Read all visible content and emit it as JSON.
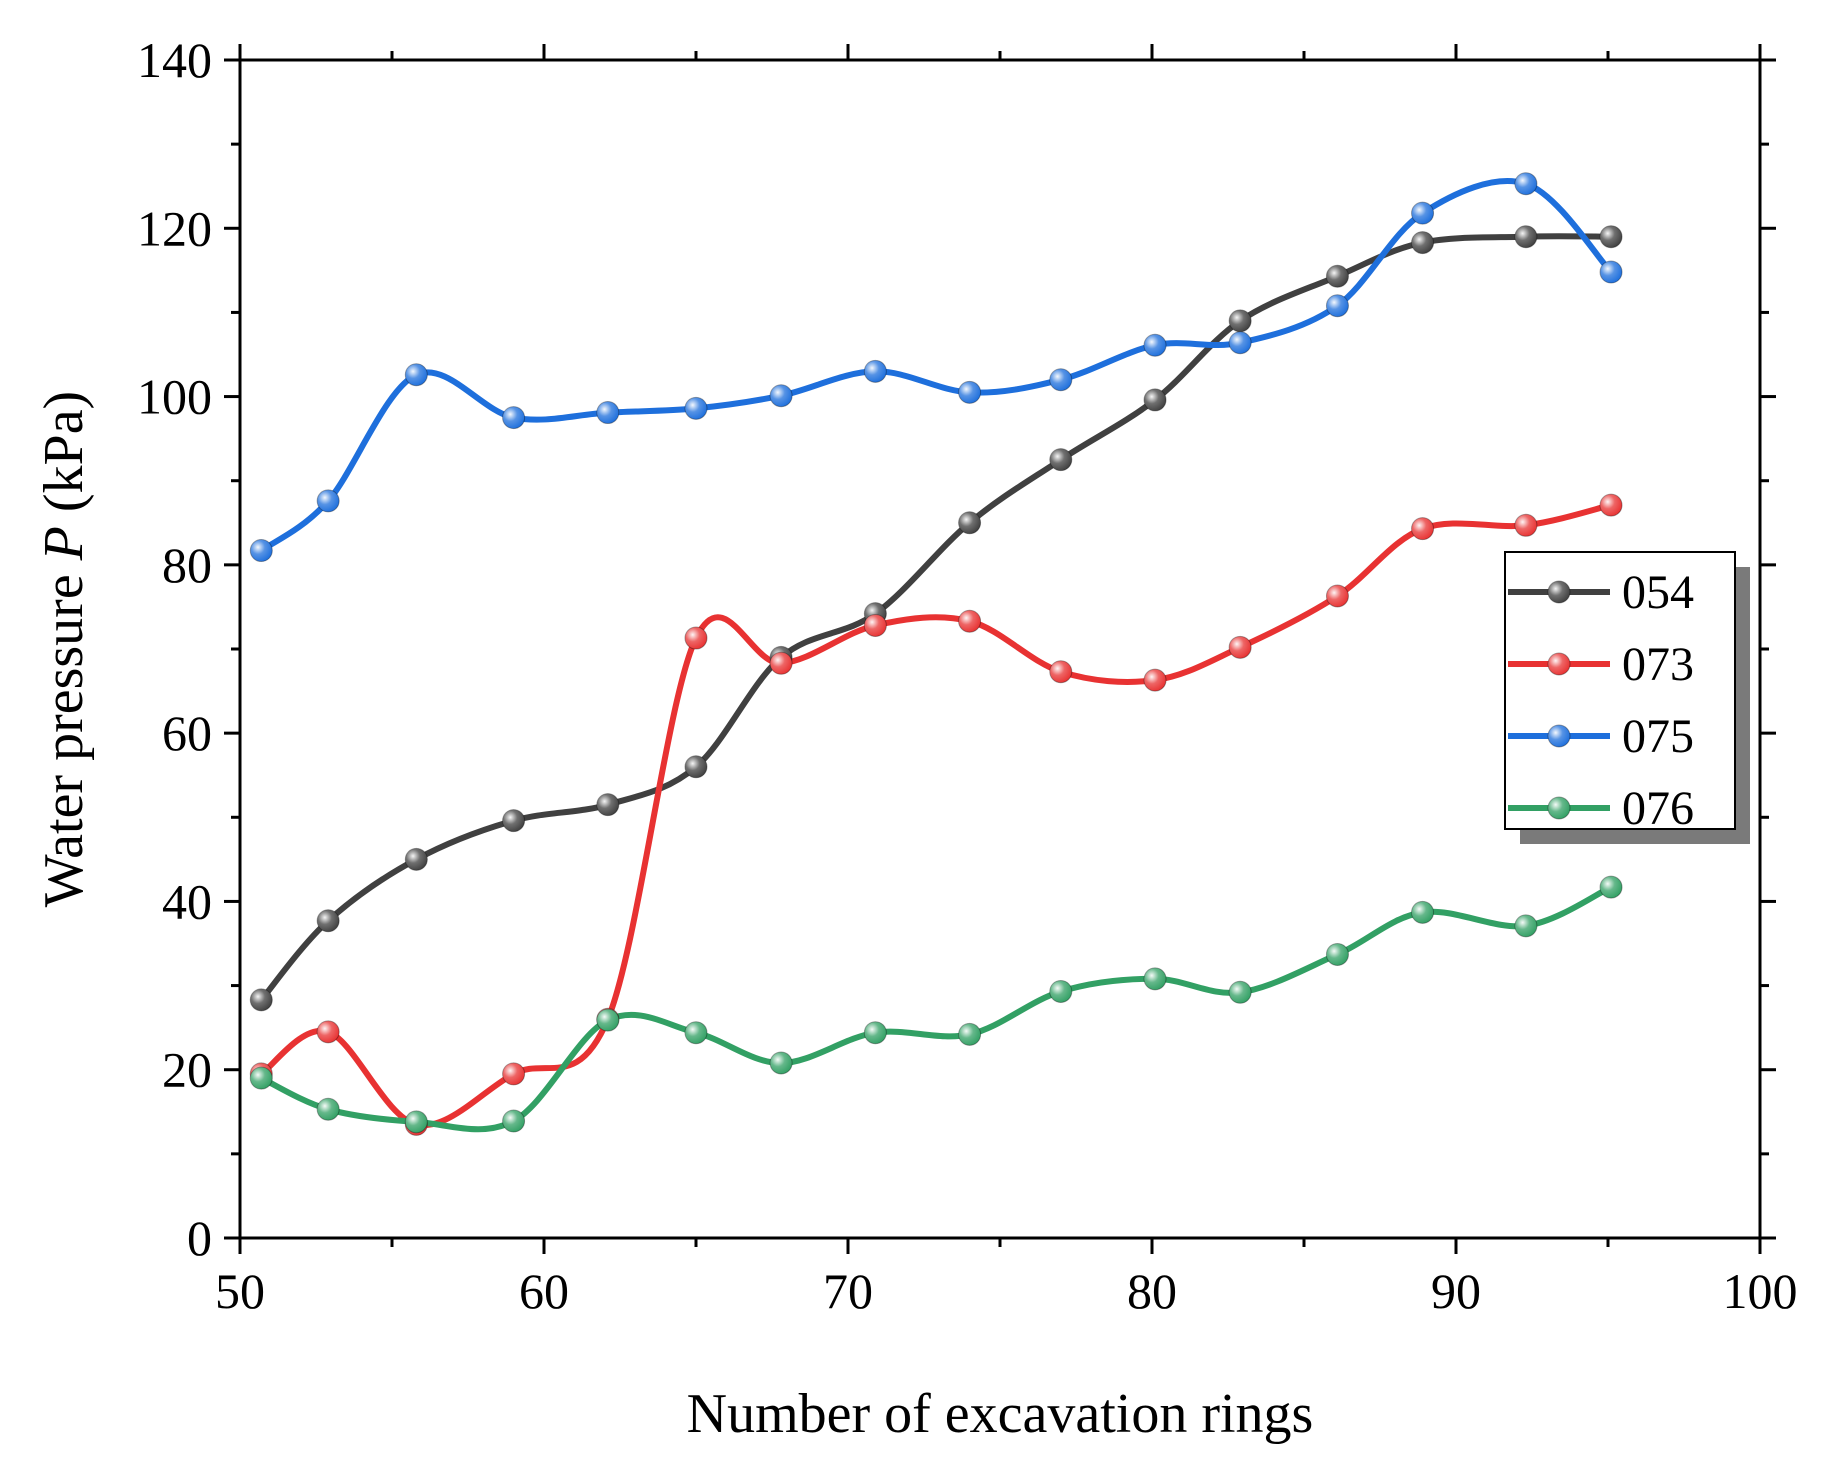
{
  "chart_data": {
    "type": "line",
    "title": "",
    "xlabel": "Number of excavation rings",
    "ylabel_parts": [
      "Water pressure ",
      "P",
      " (kPa)"
    ],
    "xlim": [
      50,
      100
    ],
    "ylim": [
      0,
      140
    ],
    "x_ticks": [
      50,
      60,
      70,
      80,
      90,
      100
    ],
    "y_ticks": [
      0,
      20,
      40,
      60,
      80,
      100,
      120,
      140
    ],
    "x_tick_labels": [
      "50",
      "60",
      "70",
      "80",
      "90",
      "100"
    ],
    "y_tick_labels": [
      "0",
      "20",
      "40",
      "60",
      "80",
      "100",
      "120",
      "140"
    ],
    "legend_position": "right-middle",
    "x": [
      50.7,
      52.9,
      55.8,
      59.0,
      62.1,
      65.0,
      67.8,
      70.9,
      74.0,
      77.0,
      80.1,
      82.9,
      86.1,
      88.9,
      92.3,
      95.1
    ],
    "series": [
      {
        "name": "054",
        "color": "#404040",
        "values": [
          28.3,
          37.7,
          45.0,
          49.6,
          51.5,
          56.0,
          69.0,
          74.2,
          85.0,
          92.5,
          99.6,
          109.0,
          114.3,
          118.3,
          119.0,
          119.0
        ]
      },
      {
        "name": "073",
        "color": "#e83232",
        "values": [
          19.5,
          24.5,
          13.5,
          19.5,
          26.0,
          71.3,
          68.3,
          72.8,
          73.3,
          67.3,
          66.3,
          70.2,
          76.3,
          84.3,
          84.7,
          87.1
        ]
      },
      {
        "name": "075",
        "color": "#1e6fdc",
        "values": [
          81.7,
          87.6,
          102.6,
          97.5,
          98.1,
          98.6,
          100.1,
          103.0,
          100.5,
          102.0,
          106.1,
          106.4,
          110.8,
          121.8,
          125.3,
          114.8
        ]
      },
      {
        "name": "076",
        "color": "#32a064",
        "values": [
          19.0,
          15.3,
          13.8,
          13.9,
          25.9,
          24.4,
          20.8,
          24.4,
          24.2,
          29.3,
          30.8,
          29.2,
          33.7,
          38.7,
          37.1,
          41.7
        ]
      }
    ]
  }
}
